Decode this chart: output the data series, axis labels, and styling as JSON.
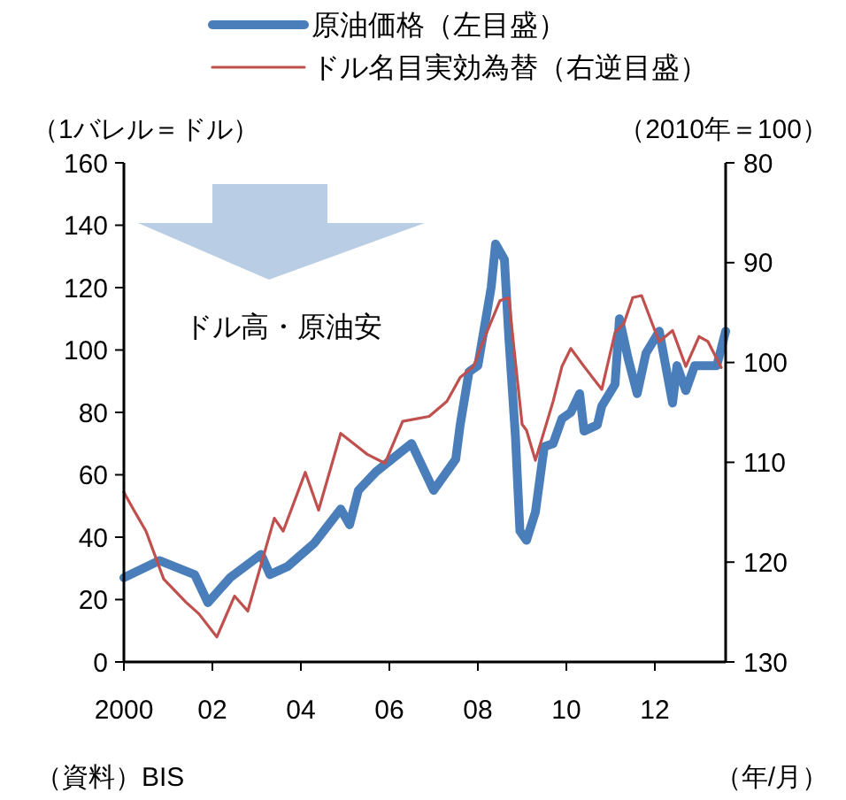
{
  "chart_data": {
    "type": "line",
    "ylabel": "（1バレル＝ドル）",
    "y2label": "（2010年＝100）",
    "xlabel": "（年/月）",
    "annotations": [
      "ドル高・原油安",
      "（資料）BIS"
    ],
    "legend": "top",
    "grid": false,
    "xlim": [
      2000,
      2013.6
    ],
    "xticks": [
      {
        "value": 2000,
        "label": "2000"
      },
      {
        "value": 2002,
        "label": "02"
      },
      {
        "value": 2004,
        "label": "04"
      },
      {
        "value": 2006,
        "label": "06"
      },
      {
        "value": 2008,
        "label": "08"
      },
      {
        "value": 2010,
        "label": "10"
      },
      {
        "value": 2012,
        "label": "12"
      }
    ],
    "ylim": [
      0,
      160
    ],
    "yticks": [
      0,
      20,
      40,
      60,
      80,
      100,
      120,
      140,
      160
    ],
    "y2lim": [
      130,
      80
    ],
    "y2ticks": [
      80,
      90,
      100,
      110,
      120,
      130
    ],
    "series": [
      {
        "name": "原油価格（左目盛）",
        "color": "#4a7ebb",
        "x": [
          2000,
          2000.8,
          2001.6,
          2001.9,
          2002.4,
          2003.1,
          2003.3,
          2003.7,
          2004.3,
          2004.9,
          2005.1,
          2005.3,
          2005.7,
          2006.5,
          2007.0,
          2007.5,
          2007.6,
          2007.8,
          2008.0,
          2008.3,
          2008.4,
          2008.6,
          2008.7,
          2008.85,
          2008.95,
          2009.1,
          2009.3,
          2009.5,
          2009.7,
          2009.9,
          2010.1,
          2010.3,
          2010.4,
          2010.7,
          2010.8,
          2011.1,
          2011.2,
          2011.4,
          2011.6,
          2011.8,
          2012.1,
          2012.4,
          2012.5,
          2012.7,
          2012.9,
          2013.2,
          2013.4,
          2013.6
        ],
        "values": [
          27,
          32.5,
          28,
          19,
          27,
          34.5,
          28,
          30.6,
          38,
          49,
          44,
          55,
          61,
          70,
          55,
          65,
          76,
          93,
          95,
          120,
          134,
          129,
          104,
          72,
          42,
          39,
          48,
          69,
          70,
          78,
          80,
          86,
          74,
          76,
          82,
          89,
          110,
          97,
          86,
          99,
          106,
          83,
          95,
          87,
          95,
          95,
          95,
          106
        ]
      },
      {
        "name": "ドル名目実効為替（右逆目盛）",
        "color": "#c0504d",
        "axis": "y2",
        "x": [
          2000,
          2000.2,
          2000.5,
          2000.9,
          2001.4,
          2001.7,
          2002.1,
          2002.5,
          2002.8,
          2003.4,
          2003.6,
          2004.1,
          2004.4,
          2004.9,
          2005.5,
          2005.9,
          2006.3,
          2006.9,
          2007.3,
          2007.6,
          2007.9,
          2008.2,
          2008.5,
          2008.7,
          2008.8,
          2009.0,
          2009.1,
          2009.3,
          2009.7,
          2009.9,
          2010.1,
          2010.4,
          2010.8,
          2011.1,
          2011.3,
          2011.5,
          2011.7,
          2012.0,
          2012.1,
          2012.4,
          2012.7,
          2013.0,
          2013.2,
          2013.5
        ],
        "values": [
          113,
          114.6,
          116.9,
          121.7,
          124,
          125.2,
          127.5,
          123.4,
          124.9,
          115.6,
          116.9,
          111,
          114.8,
          107.1,
          109.2,
          110.1,
          105.9,
          105.4,
          103.9,
          101.5,
          100.4,
          97,
          93.8,
          93.5,
          97.9,
          106.2,
          106.8,
          109.8,
          103.9,
          100.4,
          98.6,
          100.4,
          102.7,
          97,
          96.1,
          93.5,
          93.3,
          96.8,
          97.9,
          96.8,
          100.4,
          97.4,
          97.9,
          100.5
        ]
      }
    ]
  }
}
